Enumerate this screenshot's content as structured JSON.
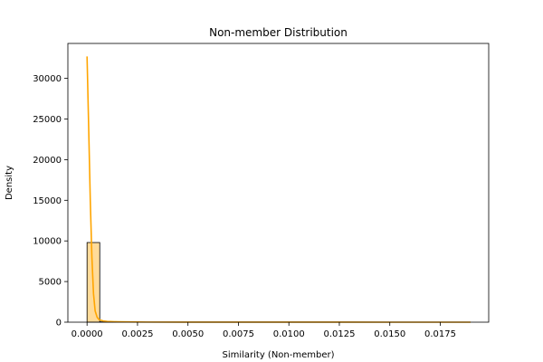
{
  "chart_data": {
    "type": "histogram-with-kde",
    "title": "Non-member Distribution",
    "xlabel": "Similarity (Non-member)",
    "ylabel": "Density",
    "xlim": [
      -0.00095,
      0.0199
    ],
    "ylim": [
      0,
      34300
    ],
    "x_ticks": [
      0.0,
      0.0025,
      0.005,
      0.0075,
      0.01,
      0.0125,
      0.015,
      0.0175
    ],
    "x_tick_labels": [
      "0.0000",
      "0.0025",
      "0.0050",
      "0.0075",
      "0.0100",
      "0.0125",
      "0.0150",
      "0.0175"
    ],
    "y_ticks": [
      0,
      5000,
      10000,
      15000,
      20000,
      25000,
      30000
    ],
    "y_tick_labels": [
      "0",
      "5000",
      "10000",
      "15000",
      "20000",
      "25000",
      "30000"
    ],
    "bins": [
      {
        "x0": 0.0,
        "x1": 0.00063,
        "density": 9800
      },
      {
        "x0": 0.00063,
        "x1": 0.00126,
        "density": 45
      },
      {
        "x0": 0.00126,
        "x1": 0.00189,
        "density": 8
      },
      {
        "x0": 0.00189,
        "x1": 0.00252,
        "density": 3
      },
      {
        "x0": 0.00252,
        "x1": 0.00315,
        "density": 2
      }
    ],
    "kde": {
      "x": [
        0.0,
        8e-05,
        0.00016,
        0.00024,
        0.00032,
        0.0004,
        0.0005,
        0.0006,
        0.0008,
        0.001,
        0.0015,
        0.002,
        0.003,
        0.005,
        0.01,
        0.015,
        0.019
      ],
      "y": [
        32700,
        24000,
        15000,
        8000,
        3500,
        1400,
        600,
        300,
        150,
        90,
        50,
        30,
        15,
        6,
        2,
        1,
        0
      ]
    },
    "colors": {
      "kde": "#ffa500",
      "bar_fill": "#ffa500",
      "bar_fill_opacity": 0.4,
      "bar_edge": "#000000"
    }
  }
}
